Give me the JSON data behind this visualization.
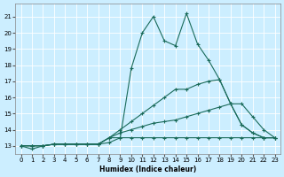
{
  "xlabel": "Humidex (Indice chaleur)",
  "bg_color": "#cceeff",
  "line_color": "#1a6b5a",
  "xlim": [
    -0.5,
    23.5
  ],
  "ylim": [
    12.5,
    21.8
  ],
  "yticks": [
    13,
    14,
    15,
    16,
    17,
    18,
    19,
    20,
    21
  ],
  "xticks": [
    0,
    1,
    2,
    3,
    4,
    5,
    6,
    7,
    8,
    9,
    10,
    11,
    12,
    13,
    14,
    15,
    16,
    17,
    18,
    19,
    20,
    21,
    22,
    23
  ],
  "lines": [
    {
      "x": [
        0,
        1,
        2,
        3,
        4,
        5,
        6,
        7,
        8,
        9,
        10,
        11,
        12,
        13,
        14,
        15,
        16,
        17,
        18,
        19,
        20,
        21,
        22,
        23
      ],
      "y": [
        13.0,
        12.8,
        13.0,
        13.1,
        13.1,
        13.1,
        13.1,
        13.1,
        13.2,
        13.5,
        17.8,
        20.0,
        21.0,
        19.5,
        19.2,
        21.2,
        19.3,
        18.3,
        17.1,
        15.6,
        14.3,
        13.8,
        13.5,
        13.5
      ]
    },
    {
      "x": [
        0,
        1,
        2,
        3,
        4,
        5,
        6,
        7,
        8,
        9,
        10,
        11,
        12,
        13,
        14,
        15,
        16,
        17,
        18,
        19,
        20,
        21,
        22,
        23
      ],
      "y": [
        13.0,
        13.0,
        13.0,
        13.1,
        13.1,
        13.1,
        13.1,
        13.1,
        13.5,
        14.0,
        14.5,
        15.0,
        15.5,
        16.0,
        16.5,
        16.5,
        16.8,
        17.0,
        17.1,
        15.6,
        14.3,
        13.8,
        13.5,
        13.5
      ]
    },
    {
      "x": [
        0,
        1,
        2,
        3,
        4,
        5,
        6,
        7,
        8,
        9,
        10,
        11,
        12,
        13,
        14,
        15,
        16,
        17,
        18,
        19,
        20,
        21,
        22,
        23
      ],
      "y": [
        13.0,
        13.0,
        13.0,
        13.1,
        13.1,
        13.1,
        13.1,
        13.1,
        13.5,
        13.8,
        14.0,
        14.2,
        14.4,
        14.5,
        14.6,
        14.8,
        15.0,
        15.2,
        15.4,
        15.6,
        15.6,
        14.8,
        14.0,
        13.5
      ]
    },
    {
      "x": [
        0,
        1,
        2,
        3,
        4,
        5,
        6,
        7,
        8,
        9,
        10,
        11,
        12,
        13,
        14,
        15,
        16,
        17,
        18,
        19,
        20,
        21,
        22,
        23
      ],
      "y": [
        13.0,
        13.0,
        13.0,
        13.1,
        13.1,
        13.1,
        13.1,
        13.1,
        13.5,
        13.5,
        13.5,
        13.5,
        13.5,
        13.5,
        13.5,
        13.5,
        13.5,
        13.5,
        13.5,
        13.5,
        13.5,
        13.5,
        13.5,
        13.5
      ]
    }
  ]
}
